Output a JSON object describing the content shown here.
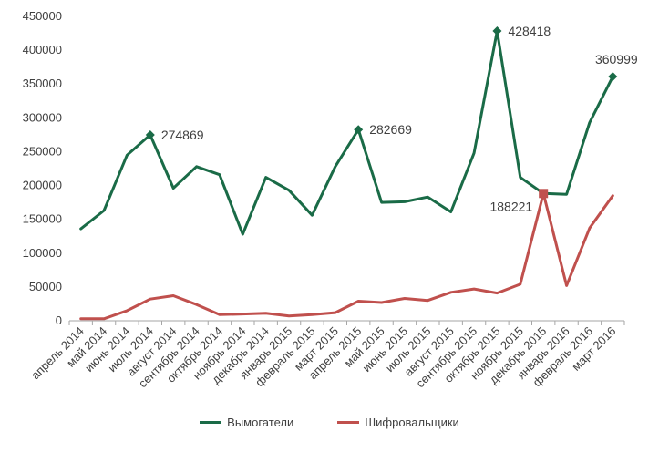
{
  "chart_data": {
    "type": "line",
    "title": "",
    "xlabel": "",
    "ylabel": "",
    "ylim": [
      0,
      450000
    ],
    "yticks": [
      0,
      50000,
      100000,
      150000,
      200000,
      250000,
      300000,
      350000,
      400000,
      450000
    ],
    "ytick_labels": [
      "0",
      "50000",
      "100000",
      "150000",
      "200000",
      "250000",
      "300000",
      "350000",
      "400000",
      "450000"
    ],
    "grid": false,
    "legend_position": "bottom",
    "categories": [
      "апрель 2014",
      "май 2014",
      "июнь 2014",
      "июль 2014",
      "август 2014",
      "сентябрь 2014",
      "октябрь 2014",
      "ноябрь 2014",
      "декабрь 2014",
      "январь 2015",
      "февраль 2015",
      "март 2015",
      "апрель 2015",
      "май 2015",
      "июнь 2015",
      "июль 2015",
      "август 2015",
      "сентябрь 2015",
      "октябрь 2015",
      "ноябрь 2015",
      "декабрь 2015",
      "январь 2016",
      "февраль 2016",
      "март 2016"
    ],
    "series": [
      {
        "name": "Вымогатели",
        "color": "#1a6b47",
        "values": [
          136000,
          163000,
          245000,
          274869,
          196000,
          228000,
          216000,
          128000,
          212000,
          193000,
          156000,
          228000,
          282669,
          175000,
          176000,
          183000,
          161000,
          248000,
          428418,
          212000,
          188221,
          187000,
          293000,
          360999
        ],
        "labeled_points": [
          {
            "index": 3,
            "label": "274869"
          },
          {
            "index": 12,
            "label": "282669"
          },
          {
            "index": 18,
            "label": "428418"
          },
          {
            "index": 23,
            "label": "360999"
          }
        ]
      },
      {
        "name": "Шифровальщики",
        "color": "#c0504d",
        "values": [
          3000,
          3000,
          15000,
          32000,
          37000,
          24000,
          9000,
          10000,
          11000,
          7000,
          9000,
          12000,
          29000,
          27000,
          33000,
          30000,
          42000,
          47000,
          41000,
          54000,
          188221,
          52000,
          137000,
          185000
        ],
        "labeled_points": [
          {
            "index": 20,
            "label": "188221"
          }
        ]
      }
    ]
  }
}
